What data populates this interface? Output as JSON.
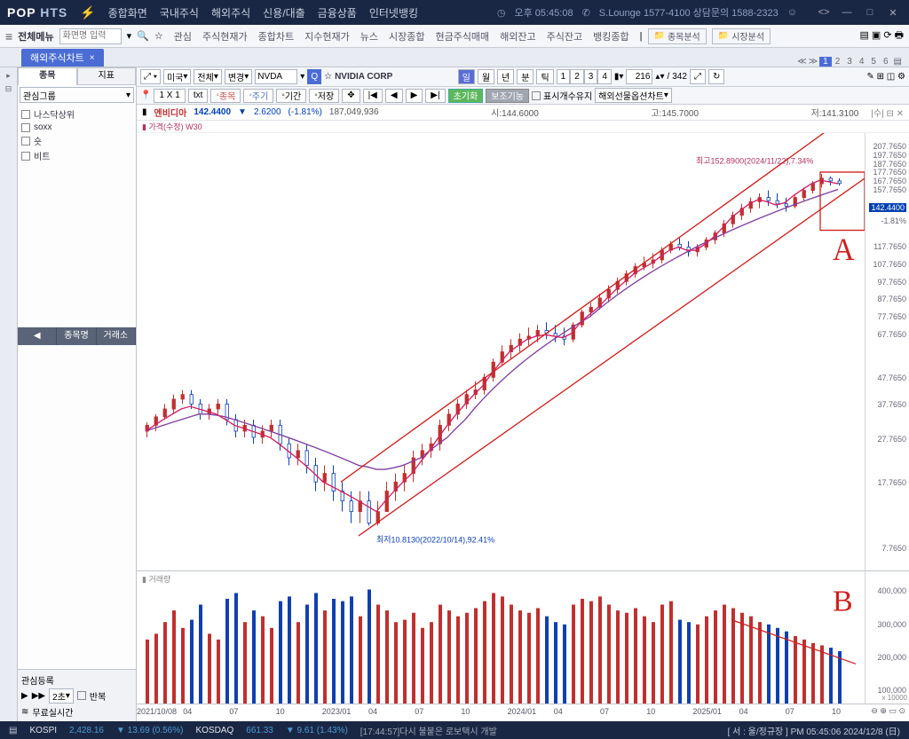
{
  "title": {
    "pop": "POP",
    "hts": "HTS"
  },
  "topnav": [
    "종합화면",
    "국내주식",
    "해외주식",
    "신용/대출",
    "금융상품",
    "인터넷뱅킹"
  ],
  "titlebar_right": {
    "time": "오후 05:45:08",
    "lounge": "S.Lounge 1577-4100 상담문의 1588-2323"
  },
  "toolbar2": {
    "menu": "전체메뉴",
    "search_ph": "화면명 입력",
    "favs": [
      "관심",
      "주식현재가",
      "종합차트",
      "지수현재가",
      "뉴스",
      "시장종합",
      "현금주식매매",
      "해외잔고",
      "주식잔고",
      "뱅킹종합"
    ],
    "folders": [
      "종목분석",
      "시장분석"
    ]
  },
  "tab": {
    "name": "해외주식차트",
    "pages": [
      "1",
      "2",
      "3",
      "4",
      "5",
      "6"
    ]
  },
  "side": {
    "tabs": [
      "종목",
      "지표"
    ],
    "group": "관심그룹",
    "items": [
      "나스닥상위",
      "soxx",
      "숏",
      "비트"
    ],
    "cols": [
      "종목명",
      "거래소"
    ],
    "footer1": "관심등록",
    "secs": "2초",
    "repeat": "반복",
    "realtime": "무료실시간"
  },
  "chart_tb": {
    "country": "미국",
    "all": "전체",
    "change": "변경",
    "ticker": "NVDA",
    "name": "NVIDIA CORP",
    "periods": [
      "일",
      "월",
      "년",
      "분",
      "틱"
    ],
    "nums": [
      "1",
      "2",
      "3",
      "4"
    ],
    "count": "216",
    "total": "342"
  },
  "chart_tb2": {
    "btns": [
      "1 X 1",
      "txt",
      "종목",
      "주기",
      "기간",
      "저장"
    ],
    "green": "초기화",
    "gray": "보조기능",
    "chk": "표시개수유지",
    "sel": "해외선물옵션차트"
  },
  "header": {
    "stock": "엔비디아",
    "price": "142.4400",
    "arrow": "▼",
    "chg": "2.6200",
    "pct": "(-1.81%)",
    "vol": "187,049,936",
    "o": "시:144.6000",
    "h": "고:145.7000",
    "l": "저:141.3100"
  },
  "sub": "가격(수정) W30",
  "anno": {
    "high": "최고152.8900(2024/11/22),7.34%",
    "low": "최저10.8130(2022/10/14),92.41%",
    "A": "A",
    "B": "B"
  },
  "yaxis": {
    "labels": [
      {
        "v": "207.7650",
        "y": 3
      },
      {
        "v": "197.7650",
        "y": 5
      },
      {
        "v": "187.7650",
        "y": 7
      },
      {
        "v": "177.7650",
        "y": 9
      },
      {
        "v": "167.7650",
        "y": 11
      },
      {
        "v": "157.7650",
        "y": 13
      },
      {
        "v": "142.4400",
        "y": 17,
        "hl": true
      },
      {
        "v": "-1.81%",
        "y": 20
      },
      {
        "v": "117.7650",
        "y": 26
      },
      {
        "v": "107.7650",
        "y": 30
      },
      {
        "v": "97.7650",
        "y": 34
      },
      {
        "v": "87.7650",
        "y": 38
      },
      {
        "v": "77.7650",
        "y": 42
      },
      {
        "v": "67.7650",
        "y": 46
      },
      {
        "v": "47.7650",
        "y": 56
      },
      {
        "v": "37.7650",
        "y": 62
      },
      {
        "v": "27.7650",
        "y": 70
      },
      {
        "v": "17.7650",
        "y": 80
      },
      {
        "v": "7.7650",
        "y": 95
      }
    ]
  },
  "vol_yaxis": [
    "400,000",
    "300,000",
    "200,000",
    "100,000"
  ],
  "vol_mult": "x 10000",
  "xaxis": [
    "2021/10/08",
    "04",
    "07",
    "10",
    "2023/01",
    "04",
    "07",
    "10",
    "2024/01",
    "04",
    "07",
    "10",
    "2025/01",
    "04",
    "07",
    "10"
  ],
  "vol_title": "거래량",
  "candles": [
    {
      "x": 1,
      "o": 22,
      "h": 23.5,
      "l": 21,
      "c": 23,
      "v": 55,
      "up": 1
    },
    {
      "x": 2,
      "o": 23,
      "h": 25,
      "l": 22,
      "c": 24.5,
      "v": 60,
      "up": 1
    },
    {
      "x": 3,
      "o": 24.5,
      "h": 27,
      "l": 24,
      "c": 26,
      "v": 70,
      "up": 1
    },
    {
      "x": 4,
      "o": 26,
      "h": 29,
      "l": 25,
      "c": 28,
      "v": 80,
      "up": 1
    },
    {
      "x": 5,
      "o": 28,
      "h": 30,
      "l": 27,
      "c": 29,
      "v": 65,
      "up": 1
    },
    {
      "x": 6,
      "o": 29,
      "h": 30,
      "l": 26,
      "c": 27,
      "v": 72,
      "up": 0
    },
    {
      "x": 7,
      "o": 27,
      "h": 28,
      "l": 24,
      "c": 25,
      "v": 85,
      "up": 0
    },
    {
      "x": 8,
      "o": 25,
      "h": 27,
      "l": 24,
      "c": 26,
      "v": 60,
      "up": 1
    },
    {
      "x": 9,
      "o": 26,
      "h": 28,
      "l": 25,
      "c": 27,
      "v": 55,
      "up": 1
    },
    {
      "x": 10,
      "o": 27,
      "h": 28,
      "l": 23,
      "c": 24,
      "v": 90,
      "up": 0
    },
    {
      "x": 11,
      "o": 24,
      "h": 25,
      "l": 21,
      "c": 22,
      "v": 95,
      "up": 0
    },
    {
      "x": 12,
      "o": 22,
      "h": 24,
      "l": 21,
      "c": 23,
      "v": 70,
      "up": 1
    },
    {
      "x": 13,
      "o": 23,
      "h": 24,
      "l": 20,
      "c": 21,
      "v": 80,
      "up": 0
    },
    {
      "x": 14,
      "o": 21,
      "h": 23,
      "l": 20,
      "c": 22,
      "v": 75,
      "up": 1
    },
    {
      "x": 15,
      "o": 22,
      "h": 24,
      "l": 21,
      "c": 23,
      "v": 65,
      "up": 1
    },
    {
      "x": 16,
      "o": 23,
      "h": 24,
      "l": 19,
      "c": 20,
      "v": 88,
      "up": 0
    },
    {
      "x": 17,
      "o": 20,
      "h": 21,
      "l": 17,
      "c": 18,
      "v": 92,
      "up": 0
    },
    {
      "x": 18,
      "o": 18,
      "h": 20,
      "l": 17,
      "c": 19,
      "v": 70,
      "up": 1
    },
    {
      "x": 19,
      "o": 19,
      "h": 20,
      "l": 16,
      "c": 17,
      "v": 85,
      "up": 0
    },
    {
      "x": 20,
      "o": 17,
      "h": 18,
      "l": 14,
      "c": 15,
      "v": 95,
      "up": 0
    },
    {
      "x": 21,
      "o": 15,
      "h": 17,
      "l": 14,
      "c": 16,
      "v": 80,
      "up": 1
    },
    {
      "x": 22,
      "o": 16,
      "h": 17,
      "l": 13,
      "c": 14,
      "v": 90,
      "up": 0
    },
    {
      "x": 23,
      "o": 14,
      "h": 15,
      "l": 12,
      "c": 13,
      "v": 88,
      "up": 0
    },
    {
      "x": 24,
      "o": 13,
      "h": 14,
      "l": 11,
      "c": 12,
      "v": 92,
      "up": 0
    },
    {
      "x": 25,
      "o": 12,
      "h": 14,
      "l": 11,
      "c": 13,
      "v": 75,
      "up": 1
    },
    {
      "x": 26,
      "o": 13,
      "h": 14,
      "l": 10.8,
      "c": 11,
      "v": 98,
      "up": 0
    },
    {
      "x": 27,
      "o": 11,
      "h": 13,
      "l": 10.8,
      "c": 12,
      "v": 85,
      "up": 1
    },
    {
      "x": 28,
      "o": 12,
      "h": 15,
      "l": 12,
      "c": 14,
      "v": 80,
      "up": 1
    },
    {
      "x": 29,
      "o": 14,
      "h": 16,
      "l": 13,
      "c": 15,
      "v": 70,
      "up": 1
    },
    {
      "x": 30,
      "o": 15,
      "h": 17,
      "l": 14,
      "c": 16,
      "v": 72,
      "up": 1
    },
    {
      "x": 31,
      "o": 16,
      "h": 19,
      "l": 15,
      "c": 18,
      "v": 78,
      "up": 1
    },
    {
      "x": 32,
      "o": 18,
      "h": 20,
      "l": 17,
      "c": 19,
      "v": 65,
      "up": 1
    },
    {
      "x": 33,
      "o": 19,
      "h": 21,
      "l": 18,
      "c": 20,
      "v": 70,
      "up": 1
    },
    {
      "x": 34,
      "o": 20,
      "h": 24,
      "l": 19,
      "c": 23,
      "v": 85,
      "up": 1
    },
    {
      "x": 35,
      "o": 23,
      "h": 26,
      "l": 22,
      "c": 25,
      "v": 80,
      "up": 1
    },
    {
      "x": 36,
      "o": 25,
      "h": 28,
      "l": 24,
      "c": 27,
      "v": 75,
      "up": 1
    },
    {
      "x": 37,
      "o": 27,
      "h": 30,
      "l": 26,
      "c": 29,
      "v": 78,
      "up": 1
    },
    {
      "x": 38,
      "o": 29,
      "h": 32,
      "l": 28,
      "c": 30,
      "v": 82,
      "up": 1
    },
    {
      "x": 39,
      "o": 30,
      "h": 34,
      "l": 29,
      "c": 33,
      "v": 88,
      "up": 1
    },
    {
      "x": 40,
      "o": 33,
      "h": 38,
      "l": 32,
      "c": 37,
      "v": 95,
      "up": 1
    },
    {
      "x": 41,
      "o": 37,
      "h": 42,
      "l": 36,
      "c": 40,
      "v": 92,
      "up": 1
    },
    {
      "x": 42,
      "o": 40,
      "h": 44,
      "l": 38,
      "c": 42,
      "v": 85,
      "up": 1
    },
    {
      "x": 43,
      "o": 42,
      "h": 46,
      "l": 40,
      "c": 44,
      "v": 80,
      "up": 1
    },
    {
      "x": 44,
      "o": 44,
      "h": 48,
      "l": 42,
      "c": 45,
      "v": 78,
      "up": 1
    },
    {
      "x": 45,
      "o": 45,
      "h": 49,
      "l": 43,
      "c": 47,
      "v": 82,
      "up": 1
    },
    {
      "x": 46,
      "o": 47,
      "h": 50,
      "l": 44,
      "c": 46,
      "v": 75,
      "up": 0
    },
    {
      "x": 47,
      "o": 46,
      "h": 49,
      "l": 43,
      "c": 45,
      "v": 70,
      "up": 0
    },
    {
      "x": 48,
      "o": 45,
      "h": 48,
      "l": 42,
      "c": 44,
      "v": 68,
      "up": 0
    },
    {
      "x": 49,
      "o": 44,
      "h": 50,
      "l": 43,
      "c": 49,
      "v": 85,
      "up": 1
    },
    {
      "x": 50,
      "o": 49,
      "h": 55,
      "l": 48,
      "c": 54,
      "v": 90,
      "up": 1
    },
    {
      "x": 51,
      "o": 54,
      "h": 58,
      "l": 52,
      "c": 56,
      "v": 88,
      "up": 1
    },
    {
      "x": 52,
      "o": 56,
      "h": 62,
      "l": 55,
      "c": 60,
      "v": 92,
      "up": 1
    },
    {
      "x": 53,
      "o": 60,
      "h": 66,
      "l": 58,
      "c": 64,
      "v": 85,
      "up": 1
    },
    {
      "x": 54,
      "o": 64,
      "h": 70,
      "l": 62,
      "c": 68,
      "v": 80,
      "up": 1
    },
    {
      "x": 55,
      "o": 68,
      "h": 74,
      "l": 66,
      "c": 72,
      "v": 78,
      "up": 1
    },
    {
      "x": 56,
      "o": 72,
      "h": 78,
      "l": 70,
      "c": 76,
      "v": 82,
      "up": 1
    },
    {
      "x": 57,
      "o": 76,
      "h": 82,
      "l": 74,
      "c": 78,
      "v": 75,
      "up": 1
    },
    {
      "x": 58,
      "o": 78,
      "h": 84,
      "l": 75,
      "c": 80,
      "v": 70,
      "up": 1
    },
    {
      "x": 59,
      "o": 80,
      "h": 88,
      "l": 78,
      "c": 86,
      "v": 85,
      "up": 1
    },
    {
      "x": 60,
      "o": 86,
      "h": 92,
      "l": 84,
      "c": 90,
      "v": 88,
      "up": 1
    },
    {
      "x": 61,
      "o": 90,
      "h": 95,
      "l": 86,
      "c": 88,
      "v": 72,
      "up": 0
    },
    {
      "x": 62,
      "o": 88,
      "h": 92,
      "l": 82,
      "c": 85,
      "v": 70,
      "up": 0
    },
    {
      "x": 63,
      "o": 85,
      "h": 90,
      "l": 82,
      "c": 88,
      "v": 68,
      "up": 1
    },
    {
      "x": 64,
      "o": 88,
      "h": 95,
      "l": 86,
      "c": 93,
      "v": 75,
      "up": 1
    },
    {
      "x": 65,
      "o": 93,
      "h": 100,
      "l": 90,
      "c": 98,
      "v": 80,
      "up": 1
    },
    {
      "x": 66,
      "o": 98,
      "h": 108,
      "l": 95,
      "c": 105,
      "v": 85,
      "up": 1
    },
    {
      "x": 67,
      "o": 105,
      "h": 115,
      "l": 102,
      "c": 112,
      "v": 82,
      "up": 1
    },
    {
      "x": 68,
      "o": 112,
      "h": 122,
      "l": 108,
      "c": 118,
      "v": 78,
      "up": 1
    },
    {
      "x": 69,
      "o": 118,
      "h": 128,
      "l": 114,
      "c": 124,
      "v": 75,
      "up": 1
    },
    {
      "x": 70,
      "o": 124,
      "h": 132,
      "l": 118,
      "c": 128,
      "v": 70,
      "up": 1
    },
    {
      "x": 71,
      "o": 128,
      "h": 135,
      "l": 120,
      "c": 125,
      "v": 68,
      "up": 0
    },
    {
      "x": 72,
      "o": 125,
      "h": 132,
      "l": 118,
      "c": 122,
      "v": 65,
      "up": 0
    },
    {
      "x": 73,
      "o": 122,
      "h": 128,
      "l": 115,
      "c": 120,
      "v": 62,
      "up": 0
    },
    {
      "x": 74,
      "o": 120,
      "h": 130,
      "l": 118,
      "c": 128,
      "v": 58,
      "up": 1
    },
    {
      "x": 75,
      "o": 128,
      "h": 138,
      "l": 125,
      "c": 135,
      "v": 55,
      "up": 1
    },
    {
      "x": 76,
      "o": 135,
      "h": 145,
      "l": 132,
      "c": 142,
      "v": 52,
      "up": 1
    },
    {
      "x": 77,
      "o": 142,
      "h": 152.89,
      "l": 138,
      "c": 148,
      "v": 50,
      "up": 1
    },
    {
      "x": 78,
      "o": 148,
      "h": 150,
      "l": 140,
      "c": 145,
      "v": 48,
      "up": 0
    },
    {
      "x": 79,
      "o": 145,
      "h": 148,
      "l": 140,
      "c": 142.44,
      "v": 45,
      "up": 0
    }
  ],
  "ma200": [
    22,
    22.5,
    23,
    23.5,
    24,
    24.5,
    25,
    25,
    24.8,
    24.5,
    24,
    23.5,
    23,
    22.5,
    22,
    21.5,
    21,
    20.5,
    20,
    19.5,
    19,
    18.5,
    18,
    17.5,
    17,
    16.8,
    16.5,
    16.5,
    16.7,
    17,
    17.5,
    18,
    19,
    20,
    21,
    22.5,
    24,
    26,
    28,
    30,
    32,
    34,
    36,
    38,
    40,
    42,
    44,
    46,
    48,
    50,
    52,
    55,
    58,
    61,
    64,
    67,
    70,
    73,
    76,
    79,
    82,
    85,
    88,
    91,
    94,
    97,
    100,
    103,
    106,
    109,
    112,
    115,
    118,
    121,
    124,
    127,
    130,
    133,
    136
  ],
  "ma50": [
    22,
    23,
    24,
    25,
    26,
    26.5,
    26,
    25.5,
    25,
    24,
    23,
    22.5,
    22,
    21.5,
    21,
    20,
    19,
    18,
    17,
    16,
    15,
    14.5,
    14,
    13.5,
    13,
    12.5,
    12,
    13,
    14,
    15,
    16,
    17.5,
    19,
    21,
    23,
    25,
    27,
    29,
    31,
    34,
    37,
    40,
    42,
    44,
    45,
    45.5,
    45,
    44.5,
    46,
    50,
    53,
    56,
    60,
    64,
    68,
    72,
    75,
    78,
    82,
    86,
    88,
    86,
    86,
    90,
    95,
    102,
    110,
    116,
    122,
    126,
    124,
    121,
    123,
    130,
    136,
    142,
    146,
    144,
    142
  ],
  "status": {
    "kospi": {
      "n": "KOSPI",
      "v": "2,428.16",
      "c": "▼ 13.69 (0.56%)"
    },
    "kosdaq": {
      "n": "KOSDAQ",
      "v": "661.33",
      "c": "▼ 9.61 (1.43%)"
    },
    "news": "[17:44:57]다시 불붙은 로보택시 개발",
    "right": "[ 서 : 울/정규장 ] PM 05:45:06 2024/12/8 (日)"
  },
  "colors": {
    "up": "#c03030",
    "dn": "#1040b0",
    "ma200": "#8040a0",
    "ma50": "#d02060",
    "trend": "#d02020"
  }
}
